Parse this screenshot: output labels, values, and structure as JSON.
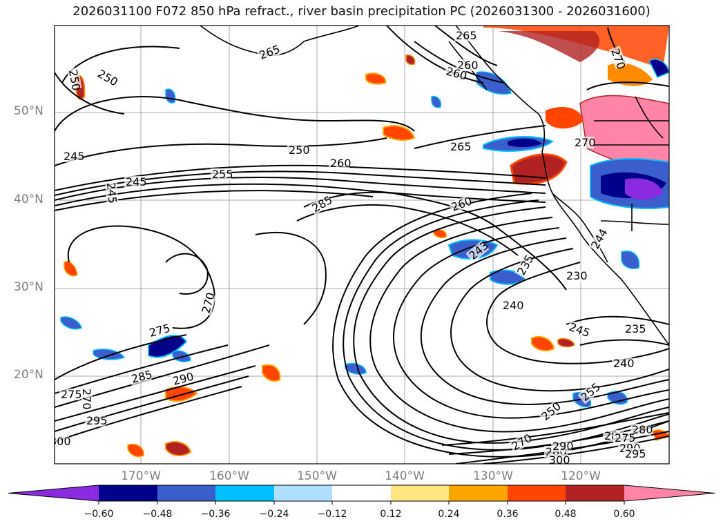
{
  "title": "2026031100 F072 850 hPa refract., river basin precipitation PC (2026031300 - 2026031600)",
  "map": {
    "lat_labels": [
      "50°N",
      "40°N",
      "30°N",
      "20°N"
    ],
    "lon_labels": [
      "170°W",
      "160°W",
      "150°W",
      "140°W",
      "130°W",
      "120°W"
    ],
    "contour_labels": [
      "265",
      "260",
      "265",
      "270",
      "260",
      "250",
      "250",
      "245",
      "245",
      "245",
      "250",
      "255",
      "260",
      "265",
      "270",
      "285",
      "260",
      "243",
      "235",
      "230",
      "244",
      "240",
      "245",
      "235",
      "240",
      "270",
      "275",
      "285",
      "290",
      "270",
      "275",
      "295",
      "300",
      "280",
      "255",
      "250",
      "270",
      "280",
      "290",
      "300",
      "280",
      "275",
      "290",
      "295"
    ],
    "colors": {
      "coast": "#000000",
      "grid": "#a0a0a0",
      "contour": "#000000",
      "neg_strong": "#000080",
      "neg_mid": "#3366cc",
      "neg_light": "#00bfff",
      "pos_mid": "#ff8c00",
      "pos_strong": "#b22222",
      "pos_max": "#ff7fa8"
    }
  },
  "colorbar": {
    "colors": [
      "#8a2be2",
      "#00008b",
      "#3a5fcd",
      "#00bfff",
      "#b0e0ff",
      "#ffffff",
      "#ffe680",
      "#ffa500",
      "#ff4500",
      "#b22222",
      "#ff85a8"
    ],
    "ticks": [
      "−0.60",
      "−0.48",
      "−0.36",
      "−0.24",
      "−0.12",
      "0.12",
      "0.24",
      "0.36",
      "0.48",
      "0.60"
    ]
  }
}
